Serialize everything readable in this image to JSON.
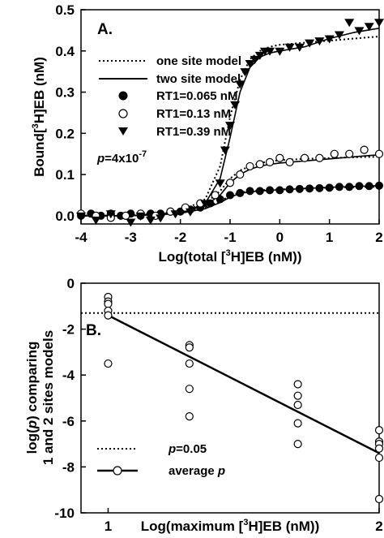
{
  "chart_data": [
    {
      "type": "scatter",
      "panel_label": "A.",
      "ylabel": "Bound[³H]EB (nM)",
      "xlabel": "Log(total [³H]EB (nM))",
      "xlim": [
        -4,
        2
      ],
      "ylim": [
        -0.02,
        0.5
      ],
      "xticks": [
        "-4",
        "-3",
        "-2",
        "-1",
        "0",
        "1",
        "2"
      ],
      "yticks": [
        "0.0",
        "0.1",
        "0.2",
        "0.3",
        "0.4",
        "0.5"
      ],
      "annotation": "p=4x10-7",
      "legend_position": "top-right",
      "legend": [
        {
          "label": "one site model",
          "marker": "dotted-line"
        },
        {
          "label": "two site model",
          "marker": "solid-line"
        },
        {
          "label": "RT1=0.065 nM",
          "marker": "filled-circle"
        },
        {
          "label": "RT1=0.13 nM",
          "marker": "open-circle"
        },
        {
          "label": "RT1=0.39 nM",
          "marker": "filled-triangle-down"
        }
      ],
      "series": [
        {
          "name": "RT1=0.065 nM",
          "marker": "filled-circle",
          "x": [
            -4.0,
            -3.8,
            -3.6,
            -3.4,
            -3.2,
            -3.0,
            -2.8,
            -2.6,
            -2.4,
            -2.2,
            -2.0,
            -1.8,
            -1.6,
            -1.4,
            -1.2,
            -1.0,
            -0.8,
            -0.6,
            -0.4,
            -0.2,
            0.0,
            0.2,
            0.4,
            0.6,
            0.8,
            1.0,
            1.2,
            1.4,
            1.6,
            1.8,
            2.0
          ],
          "y": [
            0.0,
            0.005,
            0.0,
            0.005,
            0.0,
            0.005,
            0.0,
            0.005,
            0.005,
            0.01,
            0.01,
            0.015,
            0.02,
            0.03,
            0.04,
            0.05,
            0.055,
            0.06,
            0.06,
            0.062,
            0.062,
            0.064,
            0.065,
            0.066,
            0.067,
            0.068,
            0.07,
            0.07,
            0.072,
            0.072,
            0.073
          ]
        },
        {
          "name": "RT1=0.13 nM",
          "marker": "open-circle",
          "x": [
            -4.0,
            -3.7,
            -3.4,
            -3.1,
            -2.8,
            -2.5,
            -2.2,
            -1.9,
            -1.6,
            -1.3,
            -1.0,
            -0.8,
            -0.6,
            -0.4,
            -0.2,
            0.0,
            0.2,
            0.5,
            0.8,
            1.1,
            1.4,
            1.7,
            2.0
          ],
          "y": [
            0.005,
            0.0,
            -0.005,
            0.0,
            0.005,
            0.0,
            0.01,
            0.02,
            0.03,
            0.05,
            0.08,
            0.1,
            0.12,
            0.125,
            0.13,
            0.14,
            0.13,
            0.14,
            0.14,
            0.15,
            0.15,
            0.16,
            0.15
          ]
        },
        {
          "name": "RT1=0.39 nM",
          "marker": "filled-triangle-down",
          "x": [
            -4.0,
            -3.7,
            -3.4,
            -3.0,
            -2.8,
            -2.6,
            -2.4,
            -2.1,
            -1.8,
            -1.5,
            -1.2,
            -1.1,
            -1.0,
            -0.9,
            -0.8,
            -0.7,
            -0.6,
            -0.5,
            -0.4,
            -0.3,
            -0.2,
            0.0,
            0.2,
            0.4,
            0.6,
            0.8,
            1.0,
            1.2,
            1.4,
            1.6,
            1.8,
            2.0
          ],
          "y": [
            0.0,
            -0.01,
            0.005,
            -0.015,
            0.0,
            -0.01,
            -0.005,
            0.005,
            0.01,
            0.03,
            0.08,
            0.16,
            0.22,
            0.27,
            0.32,
            0.35,
            0.37,
            0.38,
            0.39,
            0.4,
            0.4,
            0.4,
            0.41,
            0.41,
            0.42,
            0.425,
            0.43,
            0.44,
            0.47,
            0.45,
            0.46,
            0.47
          ]
        },
        {
          "name": "one site model (RT1=0.39 nM)",
          "line": "dotted",
          "x": [
            -4,
            -3,
            -2,
            -1.5,
            -1.2,
            -1.0,
            -0.8,
            -0.6,
            -0.4,
            -0.2,
            0.0,
            0.5,
            1.0,
            1.5,
            2.0
          ],
          "y": [
            0.0,
            0.0,
            0.01,
            0.04,
            0.12,
            0.24,
            0.33,
            0.38,
            0.4,
            0.41,
            0.415,
            0.42,
            0.425,
            0.43,
            0.435
          ]
        },
        {
          "name": "two site model (RT1=0.39 nM)",
          "line": "solid",
          "x": [
            -4,
            -3,
            -2,
            -1.5,
            -1.2,
            -1.0,
            -0.8,
            -0.6,
            -0.4,
            -0.2,
            0.0,
            0.5,
            1.0,
            1.5,
            2.0
          ],
          "y": [
            0.0,
            0.0,
            0.005,
            0.03,
            0.09,
            0.19,
            0.3,
            0.36,
            0.385,
            0.395,
            0.4,
            0.41,
            0.43,
            0.445,
            0.455
          ]
        },
        {
          "name": "one site model (RT1=0.13 nM)",
          "line": "dotted",
          "x": [
            -4,
            -3,
            -2,
            -1.5,
            -1.2,
            -1.0,
            -0.8,
            -0.6,
            -0.4,
            -0.2,
            0.0,
            0.5,
            1.0,
            1.5,
            2.0
          ],
          "y": [
            0.0,
            0.0,
            0.01,
            0.03,
            0.06,
            0.09,
            0.11,
            0.12,
            0.128,
            0.132,
            0.135,
            0.138,
            0.14,
            0.142,
            0.143
          ]
        },
        {
          "name": "two site model (RT1=0.13 nM)",
          "line": "solid",
          "x": [
            -4,
            -3,
            -2,
            -1.5,
            -1.2,
            -1.0,
            -0.8,
            -0.6,
            -0.4,
            -0.2,
            0.0,
            0.5,
            1.0,
            1.5,
            2.0
          ],
          "y": [
            0.0,
            0.0,
            0.008,
            0.025,
            0.05,
            0.08,
            0.1,
            0.113,
            0.12,
            0.125,
            0.128,
            0.133,
            0.138,
            0.143,
            0.148
          ]
        },
        {
          "name": "one site model (RT1=0.065 nM)",
          "line": "dotted",
          "x": [
            -4,
            -3,
            -2,
            -1.5,
            -1.2,
            -1.0,
            -0.8,
            -0.6,
            -0.4,
            -0.2,
            0.0,
            0.5,
            1.0,
            1.5,
            2.0
          ],
          "y": [
            0.0,
            0.0,
            0.008,
            0.02,
            0.035,
            0.048,
            0.056,
            0.06,
            0.062,
            0.063,
            0.064,
            0.066,
            0.068,
            0.069,
            0.07
          ]
        },
        {
          "name": "two site model (RT1=0.065 nM)",
          "line": "solid",
          "x": [
            -4,
            -3,
            -2,
            -1.5,
            -1.2,
            -1.0,
            -0.8,
            -0.6,
            -0.4,
            -0.2,
            0.0,
            0.5,
            1.0,
            1.5,
            2.0
          ],
          "y": [
            0.0,
            0.0,
            0.006,
            0.017,
            0.032,
            0.045,
            0.054,
            0.058,
            0.06,
            0.062,
            0.063,
            0.066,
            0.069,
            0.071,
            0.073
          ]
        }
      ]
    },
    {
      "type": "scatter",
      "panel_label": "B.",
      "ylabel_lines": [
        "log(p) comparing",
        "1 and 2 sites models"
      ],
      "xlabel": "Log(maximum [³H]EB (nM))",
      "xlim": [
        0.9,
        2.0
      ],
      "ylim": [
        -10,
        0
      ],
      "xticks": [
        "1",
        "2"
      ],
      "yticks": [
        "0",
        "-2",
        "-4",
        "-6",
        "-8",
        "-10"
      ],
      "legend_position": "bottom-left",
      "legend": [
        {
          "label": "p=0.05",
          "marker": "dotted-line"
        },
        {
          "label": "average p",
          "marker": "line-open-circle"
        }
      ],
      "series": [
        {
          "name": "log(p)",
          "marker": "open-circle",
          "x": [
            1.0,
            1.0,
            1.0,
            1.0,
            1.0,
            1.0,
            1.3,
            1.3,
            1.3,
            1.3,
            1.3,
            1.7,
            1.7,
            1.7,
            1.7,
            1.7,
            2.0,
            2.0,
            2.0,
            2.0,
            2.0,
            2.0
          ],
          "y": [
            -0.6,
            -0.8,
            -0.9,
            -1.2,
            -1.4,
            -3.5,
            -2.7,
            -2.8,
            -3.5,
            -4.6,
            -5.8,
            -4.4,
            -4.9,
            -5.3,
            -6.1,
            -7.0,
            -6.4,
            -6.9,
            -7.0,
            -7.2,
            -7.6,
            -9.4
          ]
        },
        {
          "name": "average p",
          "line": "solid",
          "x": [
            1.0,
            2.0
          ],
          "y": [
            -1.4,
            -7.4
          ]
        },
        {
          "name": "p=0.05",
          "line": "dotted",
          "x": [
            0.9,
            2.0
          ],
          "y": [
            -1.3,
            -1.3
          ]
        }
      ]
    }
  ],
  "legend_text": {
    "one_site": "one site model",
    "two_site": "two site model",
    "rt1_a": "RT1=0.065 nM",
    "rt1_b": "RT1=0.13 nM",
    "rt1_c": "RT1=0.39 nM",
    "p05": "p=0.05",
    "avg_p": "average p"
  },
  "texts": {
    "panel_a_label": "A.",
    "panel_b_label": "B.",
    "annotation_p_italic": "p",
    "annotation_p_eq": "=4x10",
    "annotation_p_exp": "-7",
    "a_ylabel_pre": "Bound[",
    "a_ylabel_sup": "3",
    "a_ylabel_post": "H]EB (nM)",
    "a_xlabel_pre": "Log(total [",
    "a_xlabel_sup": "3",
    "a_xlabel_post": "H]EB (nM))",
    "b_ylabel_line1_pre": "log(",
    "b_ylabel_line1_p": "p",
    "b_ylabel_line1_post": ") comparing",
    "b_ylabel_line2": "1 and 2 sites models",
    "b_xlabel_pre": "Log(maximum [",
    "b_xlabel_sup": "3",
    "b_xlabel_post": "H]EB (nM))",
    "leg_p05_p": "p",
    "leg_p05_rest": "=0.05",
    "leg_avg_pre": "average ",
    "leg_avg_p": "p"
  }
}
